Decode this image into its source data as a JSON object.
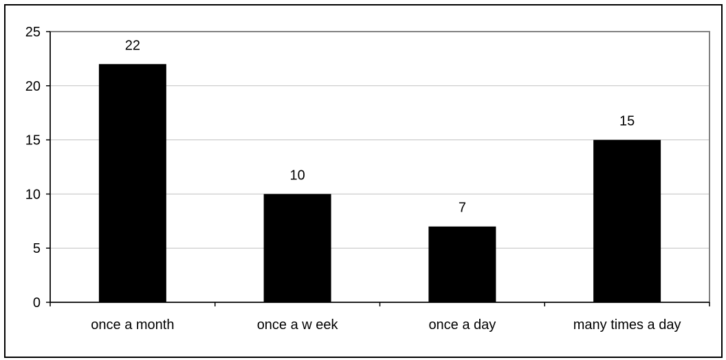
{
  "chart_data": {
    "type": "bar",
    "title": "",
    "xlabel": "",
    "ylabel": "",
    "categories": [
      "once a month",
      "once a w eek",
      "once a day",
      "many times a day"
    ],
    "values": [
      22,
      10,
      7,
      15
    ],
    "data_labels": [
      "22",
      "10",
      "7",
      "15"
    ],
    "ylim": [
      0,
      25
    ],
    "yticks": [
      0,
      5,
      10,
      15,
      20,
      25
    ],
    "ytick_labels": [
      "0",
      "5",
      "10",
      "15",
      "20",
      "25"
    ],
    "grid": true,
    "legend": "none",
    "bar_color": "#000000",
    "gridline_color": "#c0c0c0",
    "plot_border_color": "#808080"
  }
}
